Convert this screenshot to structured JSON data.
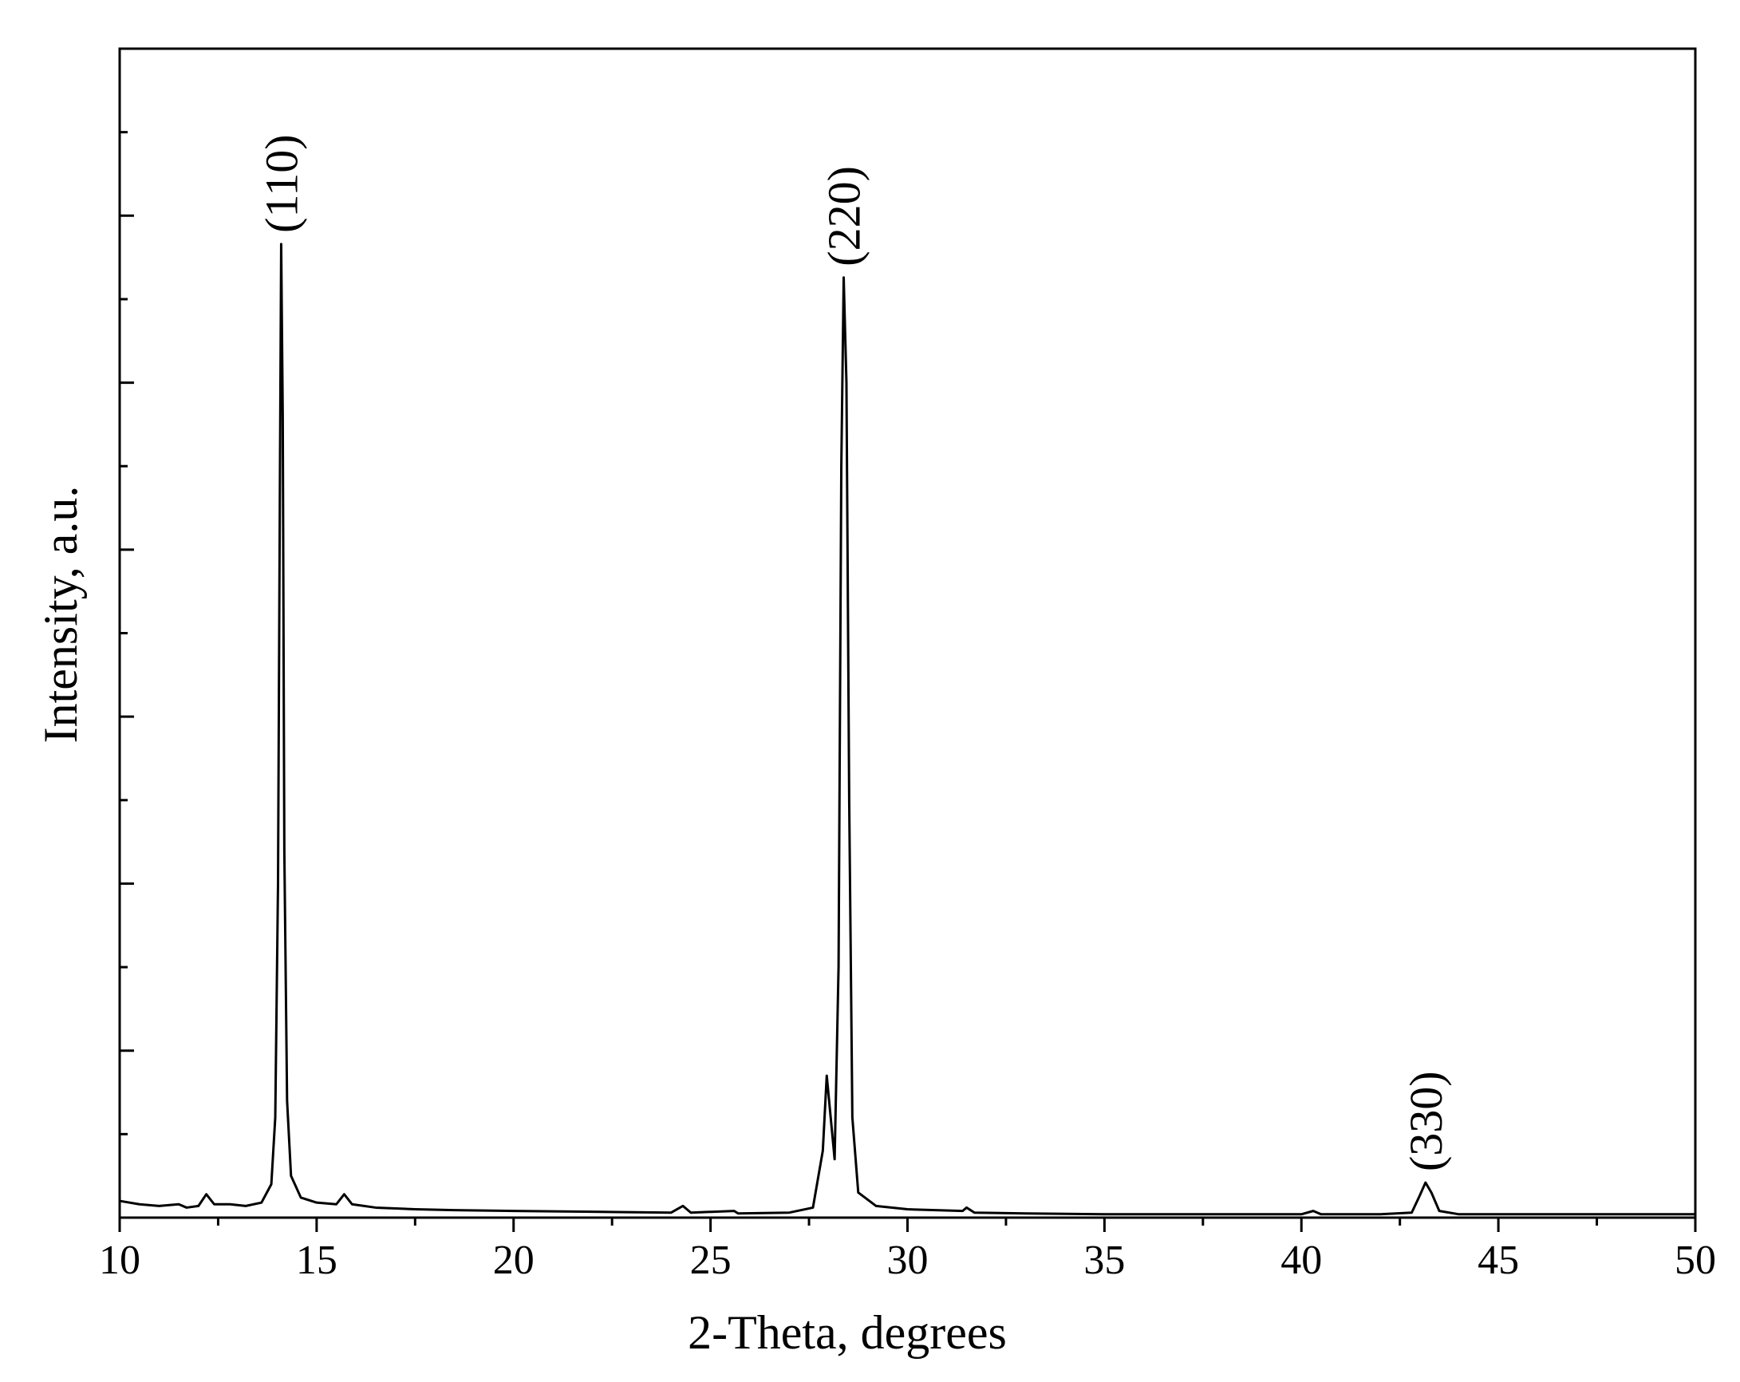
{
  "chart_data": {
    "type": "line",
    "xlabel": "2-Theta, degrees",
    "ylabel": "Intensity, a.u.",
    "xlim": [
      10,
      50
    ],
    "xticks": [
      10,
      15,
      20,
      25,
      30,
      35,
      40,
      45,
      50
    ],
    "ylim": [
      0,
      7
    ],
    "yticks": [
      0,
      1,
      2,
      3,
      4,
      5,
      6
    ],
    "ytick_labels": false,
    "color": "#000000",
    "x": [
      10.0,
      10.5,
      11.0,
      11.5,
      11.7,
      12.0,
      12.2,
      12.4,
      12.8,
      13.2,
      13.6,
      13.85,
      13.95,
      14.02,
      14.07,
      14.1,
      14.14,
      14.18,
      14.25,
      14.35,
      14.6,
      15.0,
      15.5,
      15.7,
      15.9,
      16.5,
      17.5,
      18.5,
      20,
      22,
      24,
      24.3,
      24.5,
      25.6,
      25.7,
      27,
      27.6,
      27.85,
      27.95,
      28.05,
      28.15,
      28.25,
      28.32,
      28.38,
      28.45,
      28.52,
      28.6,
      28.75,
      29.2,
      30,
      31.4,
      31.5,
      31.7,
      33,
      35,
      38,
      40,
      40.3,
      40.5,
      42,
      42.8,
      43.0,
      43.15,
      43.3,
      43.5,
      44,
      47,
      50
    ],
    "values": [
      0.1,
      0.08,
      0.07,
      0.08,
      0.06,
      0.07,
      0.14,
      0.08,
      0.08,
      0.07,
      0.09,
      0.2,
      0.6,
      2.0,
      4.5,
      5.83,
      4.8,
      2.2,
      0.7,
      0.25,
      0.12,
      0.09,
      0.08,
      0.14,
      0.08,
      0.06,
      0.05,
      0.045,
      0.04,
      0.035,
      0.03,
      0.07,
      0.03,
      0.04,
      0.025,
      0.03,
      0.06,
      0.4,
      0.85,
      0.6,
      0.35,
      1.5,
      4.5,
      5.63,
      5.0,
      2.5,
      0.6,
      0.15,
      0.07,
      0.05,
      0.04,
      0.06,
      0.03,
      0.025,
      0.02,
      0.02,
      0.02,
      0.04,
      0.02,
      0.02,
      0.03,
      0.13,
      0.21,
      0.15,
      0.04,
      0.02,
      0.02,
      0.02
    ],
    "annotations": [
      {
        "text": "(110)",
        "x": 14.1,
        "y": 5.83
      },
      {
        "text": "(220)",
        "x": 28.38,
        "y": 5.63
      },
      {
        "text": "(330)",
        "x": 43.15,
        "y": 0.21
      }
    ]
  }
}
